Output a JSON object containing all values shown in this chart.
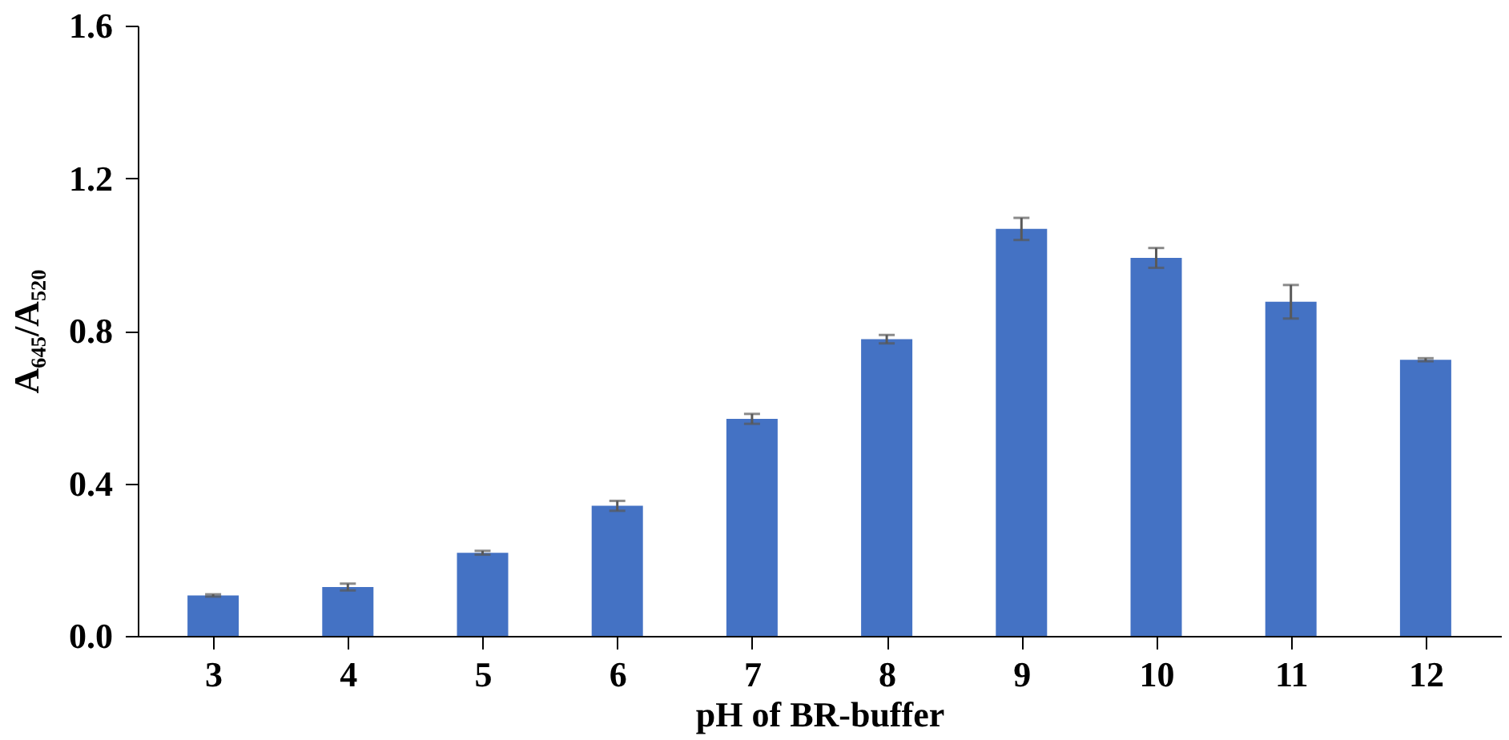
{
  "chart_data": {
    "type": "bar",
    "xlabel": "pH of BR-buffer",
    "ylabel": "A₆₄₅/A₅₂₀",
    "categories": [
      "3",
      "4",
      "5",
      "6",
      "7",
      "8",
      "9",
      "10",
      "11",
      "12"
    ],
    "values": [
      0.106,
      0.128,
      0.218,
      0.341,
      0.569,
      0.778,
      1.067,
      0.991,
      0.876,
      0.724
    ],
    "errors": [
      0.003,
      0.009,
      0.005,
      0.013,
      0.013,
      0.011,
      0.029,
      0.026,
      0.044,
      0.004
    ],
    "color": "#4472c4",
    "ylim": [
      0,
      1.6
    ],
    "yticks": [
      {
        "value": 0,
        "label": "0.0"
      },
      {
        "value": 0.4,
        "label": "0.4"
      },
      {
        "value": 0.8,
        "label": "0.8"
      },
      {
        "value": 1.2,
        "label": "1.2"
      },
      {
        "value": 1.6,
        "label": "1.6"
      }
    ],
    "grid": false
  }
}
